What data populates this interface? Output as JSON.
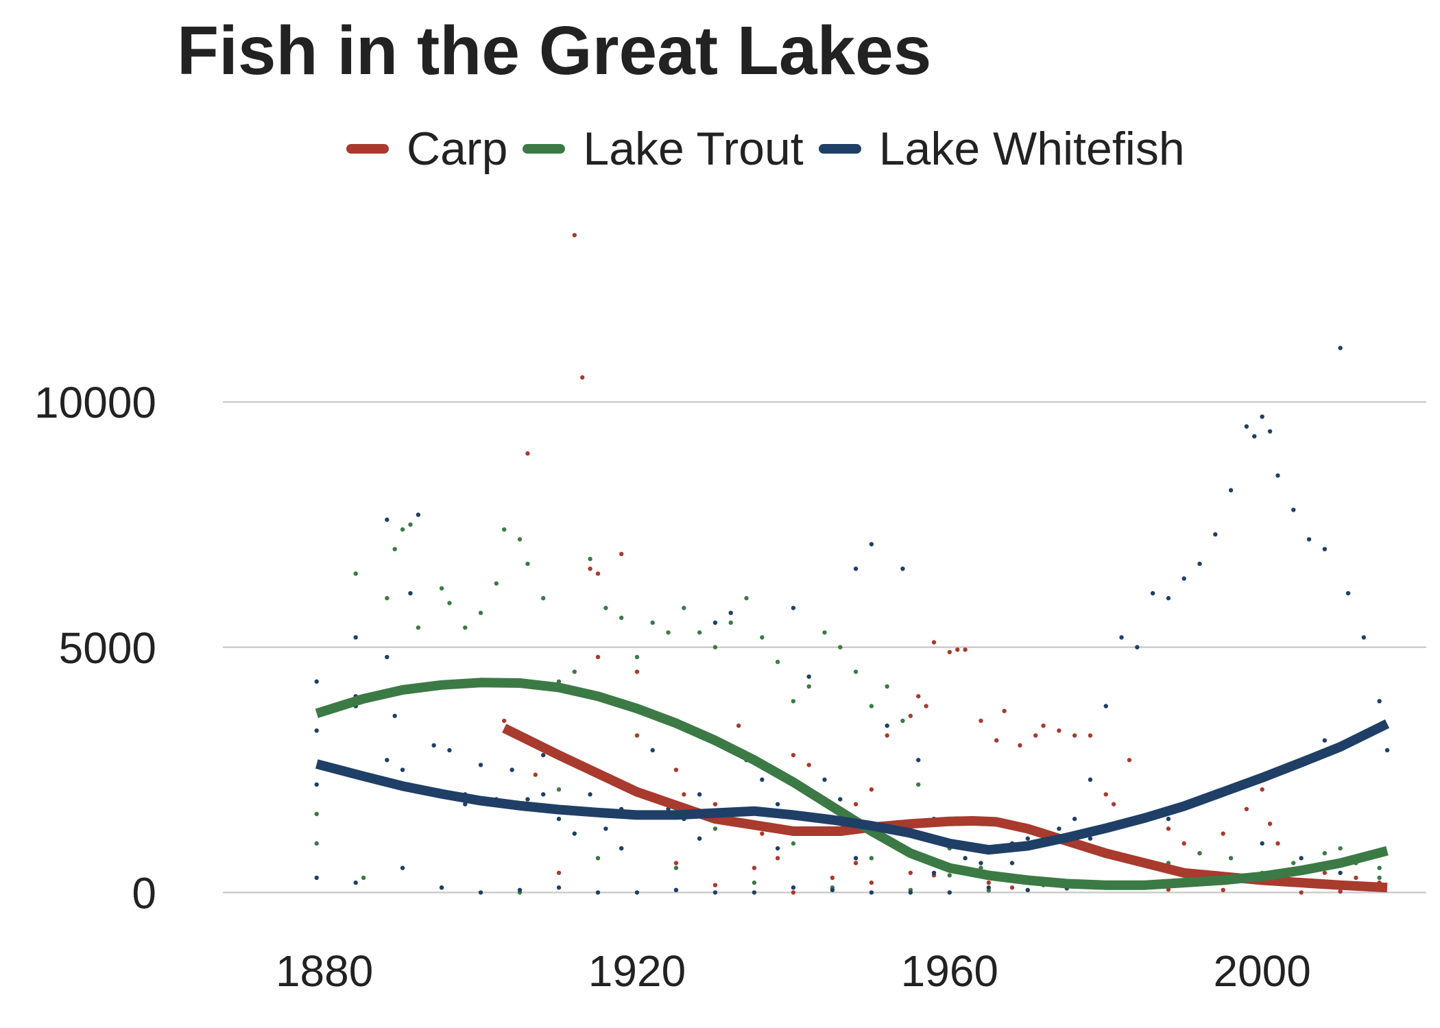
{
  "chart_data": {
    "type": "scatter",
    "title": "Fish in the Great Lakes",
    "xlabel": "",
    "ylabel": "",
    "xlim": [
      1867,
      2021
    ],
    "ylim": [
      -400,
      14000
    ],
    "x_ticks": [
      1880,
      1920,
      1960,
      2000
    ],
    "y_ticks": [
      0,
      5000,
      10000
    ],
    "grid": "horizontal",
    "legend_position": "top",
    "series": [
      {
        "name": "Carp",
        "color": "#a93a2e",
        "points": [
          [
            1903,
            3500
          ],
          [
            1906,
            8950
          ],
          [
            1907,
            2400
          ],
          [
            1912,
            13400
          ],
          [
            1913,
            10500
          ],
          [
            1914,
            6600
          ],
          [
            1915,
            6500
          ],
          [
            1918,
            6900
          ],
          [
            1915,
            4800
          ],
          [
            1920,
            4500
          ],
          [
            1920,
            3200
          ],
          [
            1925,
            2500
          ],
          [
            1926,
            2000
          ],
          [
            1930,
            1800
          ],
          [
            1933,
            3400
          ],
          [
            1936,
            1200
          ],
          [
            1940,
            2800
          ],
          [
            1942,
            2600
          ],
          [
            1944,
            1200
          ],
          [
            1948,
            1800
          ],
          [
            1950,
            2100
          ],
          [
            1952,
            3200
          ],
          [
            1955,
            3600
          ],
          [
            1956,
            4000
          ],
          [
            1957,
            3800
          ],
          [
            1958,
            5100
          ],
          [
            1960,
            4900
          ],
          [
            1961,
            4950
          ],
          [
            1962,
            4950
          ],
          [
            1964,
            3500
          ],
          [
            1966,
            3100
          ],
          [
            1967,
            3700
          ],
          [
            1969,
            3000
          ],
          [
            1971,
            3200
          ],
          [
            1972,
            3400
          ],
          [
            1974,
            3300
          ],
          [
            1976,
            3200
          ],
          [
            1978,
            3200
          ],
          [
            1980,
            2000
          ],
          [
            1981,
            1800
          ],
          [
            1983,
            2700
          ],
          [
            1985,
            1500
          ],
          [
            1988,
            1300
          ],
          [
            1990,
            1000
          ],
          [
            1992,
            800
          ],
          [
            1995,
            1200
          ],
          [
            1998,
            1700
          ],
          [
            2000,
            2100
          ],
          [
            2001,
            1400
          ],
          [
            2002,
            1000
          ],
          [
            2005,
            500
          ],
          [
            2008,
            400
          ],
          [
            2012,
            300
          ],
          [
            2015,
            200
          ],
          [
            1910,
            400
          ],
          [
            1925,
            600
          ],
          [
            1935,
            500
          ],
          [
            1945,
            300
          ],
          [
            1955,
            400
          ],
          [
            1965,
            200
          ],
          [
            1975,
            150
          ],
          [
            1985,
            100
          ],
          [
            1995,
            50
          ],
          [
            2005,
            0
          ],
          [
            1930,
            150
          ],
          [
            1940,
            0
          ],
          [
            1950,
            200
          ],
          [
            1918,
            900
          ],
          [
            1928,
            1100
          ],
          [
            1938,
            700
          ],
          [
            1948,
            600
          ],
          [
            1958,
            350
          ],
          [
            1968,
            100
          ],
          [
            1988,
            60
          ],
          [
            2010,
            20
          ]
        ]
      },
      {
        "name": "Lake Trout",
        "color": "#3c7a45",
        "points": [
          [
            1879,
            1000
          ],
          [
            1879,
            1600
          ],
          [
            1884,
            6500
          ],
          [
            1888,
            6000
          ],
          [
            1889,
            7000
          ],
          [
            1890,
            7400
          ],
          [
            1891,
            7500
          ],
          [
            1892,
            5400
          ],
          [
            1895,
            6200
          ],
          [
            1896,
            5900
          ],
          [
            1898,
            5400
          ],
          [
            1900,
            5700
          ],
          [
            1902,
            6300
          ],
          [
            1903,
            7400
          ],
          [
            1905,
            7200
          ],
          [
            1906,
            6700
          ],
          [
            1908,
            6000
          ],
          [
            1910,
            4300
          ],
          [
            1912,
            4500
          ],
          [
            1914,
            6800
          ],
          [
            1916,
            5800
          ],
          [
            1918,
            5600
          ],
          [
            1920,
            4800
          ],
          [
            1922,
            5500
          ],
          [
            1924,
            5300
          ],
          [
            1926,
            5800
          ],
          [
            1928,
            5300
          ],
          [
            1930,
            5000
          ],
          [
            1932,
            5500
          ],
          [
            1934,
            6000
          ],
          [
            1936,
            5200
          ],
          [
            1938,
            4700
          ],
          [
            1940,
            3900
          ],
          [
            1942,
            4200
          ],
          [
            1944,
            5300
          ],
          [
            1946,
            5000
          ],
          [
            1948,
            4500
          ],
          [
            1950,
            3800
          ],
          [
            1952,
            4200
          ],
          [
            1954,
            3500
          ],
          [
            1956,
            2200
          ],
          [
            1958,
            1400
          ],
          [
            1960,
            900
          ],
          [
            1964,
            500
          ],
          [
            1968,
            300
          ],
          [
            1972,
            150
          ],
          [
            1976,
            120
          ],
          [
            1980,
            100
          ],
          [
            1984,
            200
          ],
          [
            1988,
            600
          ],
          [
            1992,
            800
          ],
          [
            1996,
            700
          ],
          [
            2000,
            400
          ],
          [
            2004,
            600
          ],
          [
            2008,
            800
          ],
          [
            2012,
            600
          ],
          [
            2015,
            500
          ],
          [
            1885,
            300
          ],
          [
            1895,
            100
          ],
          [
            1905,
            0
          ],
          [
            1915,
            700
          ],
          [
            1925,
            500
          ],
          [
            1935,
            200
          ],
          [
            1945,
            100
          ],
          [
            1955,
            50
          ],
          [
            1965,
            40
          ],
          [
            1975,
            80
          ],
          [
            1985,
            150
          ],
          [
            1995,
            350
          ],
          [
            2005,
            200
          ],
          [
            2015,
            300
          ],
          [
            1910,
            2100
          ],
          [
            1920,
            1600
          ],
          [
            1930,
            1300
          ],
          [
            1940,
            1000
          ],
          [
            1950,
            700
          ],
          [
            1960,
            350
          ],
          [
            1970,
            250
          ],
          [
            1990,
            400
          ],
          [
            2010,
            900
          ]
        ]
      },
      {
        "name": "Lake Whitefish",
        "color": "#1f3f67",
        "points": [
          [
            1879,
            4300
          ],
          [
            1879,
            3300
          ],
          [
            1879,
            2200
          ],
          [
            1879,
            300
          ],
          [
            1884,
            5200
          ],
          [
            1884,
            4000
          ],
          [
            1884,
            3800
          ],
          [
            1888,
            7600
          ],
          [
            1888,
            4800
          ],
          [
            1889,
            3600
          ],
          [
            1890,
            2500
          ],
          [
            1891,
            6100
          ],
          [
            1892,
            7700
          ],
          [
            1894,
            3000
          ],
          [
            1896,
            2900
          ],
          [
            1898,
            2000
          ],
          [
            1900,
            2600
          ],
          [
            1902,
            1900
          ],
          [
            1904,
            2500
          ],
          [
            1906,
            1900
          ],
          [
            1908,
            2800
          ],
          [
            1910,
            1500
          ],
          [
            1912,
            1200
          ],
          [
            1914,
            2000
          ],
          [
            1916,
            1300
          ],
          [
            1918,
            1700
          ],
          [
            1920,
            2100
          ],
          [
            1922,
            2900
          ],
          [
            1924,
            1700
          ],
          [
            1926,
            1500
          ],
          [
            1928,
            2000
          ],
          [
            1930,
            5500
          ],
          [
            1932,
            5700
          ],
          [
            1934,
            2700
          ],
          [
            1936,
            2300
          ],
          [
            1938,
            1800
          ],
          [
            1940,
            5800
          ],
          [
            1942,
            4400
          ],
          [
            1944,
            2300
          ],
          [
            1946,
            1900
          ],
          [
            1948,
            6600
          ],
          [
            1950,
            7100
          ],
          [
            1952,
            3400
          ],
          [
            1954,
            6600
          ],
          [
            1956,
            2700
          ],
          [
            1958,
            1500
          ],
          [
            1960,
            1000
          ],
          [
            1962,
            700
          ],
          [
            1964,
            600
          ],
          [
            1966,
            900
          ],
          [
            1968,
            1000
          ],
          [
            1970,
            1100
          ],
          [
            1972,
            1200
          ],
          [
            1974,
            1300
          ],
          [
            1976,
            1500
          ],
          [
            1978,
            2300
          ],
          [
            1980,
            3800
          ],
          [
            1982,
            5200
          ],
          [
            1984,
            5000
          ],
          [
            1986,
            6100
          ],
          [
            1988,
            6000
          ],
          [
            1990,
            6400
          ],
          [
            1992,
            6700
          ],
          [
            1994,
            7300
          ],
          [
            1996,
            8200
          ],
          [
            1998,
            9500
          ],
          [
            1999,
            9300
          ],
          [
            2000,
            9700
          ],
          [
            2001,
            9400
          ],
          [
            2002,
            8500
          ],
          [
            2004,
            7800
          ],
          [
            2006,
            7200
          ],
          [
            2008,
            7000
          ],
          [
            2010,
            11100
          ],
          [
            2011,
            6100
          ],
          [
            2013,
            5200
          ],
          [
            2015,
            3900
          ],
          [
            2016,
            2900
          ],
          [
            1884,
            200
          ],
          [
            1890,
            500
          ],
          [
            1895,
            100
          ],
          [
            1900,
            0
          ],
          [
            1905,
            50
          ],
          [
            1910,
            100
          ],
          [
            1915,
            0
          ],
          [
            1920,
            0
          ],
          [
            1925,
            50
          ],
          [
            1930,
            0
          ],
          [
            1935,
            0
          ],
          [
            1940,
            100
          ],
          [
            1945,
            50
          ],
          [
            1950,
            0
          ],
          [
            1955,
            0
          ],
          [
            1960,
            0
          ],
          [
            1965,
            100
          ],
          [
            1970,
            50
          ],
          [
            1975,
            100
          ],
          [
            1985,
            150
          ],
          [
            1990,
            200
          ],
          [
            1995,
            300
          ],
          [
            2000,
            1000
          ],
          [
            2005,
            700
          ],
          [
            2010,
            400
          ],
          [
            1888,
            2700
          ],
          [
            1898,
            1800
          ],
          [
            1908,
            2000
          ],
          [
            1918,
            900
          ],
          [
            1928,
            1100
          ],
          [
            1938,
            900
          ],
          [
            1948,
            700
          ],
          [
            1958,
            400
          ],
          [
            1968,
            600
          ],
          [
            1978,
            1100
          ],
          [
            1988,
            1500
          ],
          [
            1998,
            2200
          ],
          [
            2008,
            3100
          ]
        ]
      }
    ],
    "trend_lines": [
      {
        "name": "Carp",
        "color": "#a93a2e",
        "x": [
          1903,
          1910,
          1920,
          1930,
          1940,
          1946,
          1950,
          1955,
          1960,
          1963,
          1966,
          1970,
          1975,
          1980,
          1990,
          2000,
          2010,
          2016
        ],
        "y": [
          3350,
          2800,
          2050,
          1500,
          1250,
          1250,
          1330,
          1400,
          1450,
          1460,
          1440,
          1300,
          1050,
          800,
          400,
          250,
          150,
          100
        ]
      },
      {
        "name": "Lake Trout",
        "color": "#3c7a45",
        "x": [
          1879,
          1885,
          1890,
          1895,
          1900,
          1905,
          1910,
          1915,
          1920,
          1925,
          1930,
          1935,
          1940,
          1945,
          1950,
          1955,
          1960,
          1965,
          1970,
          1975,
          1980,
          1985,
          1990,
          1995,
          2000,
          2005,
          2010,
          2016
        ],
        "y": [
          3650,
          3950,
          4130,
          4230,
          4280,
          4270,
          4180,
          4000,
          3750,
          3450,
          3100,
          2700,
          2250,
          1750,
          1250,
          800,
          500,
          350,
          250,
          180,
          150,
          150,
          200,
          250,
          330,
          450,
          600,
          850
        ]
      },
      {
        "name": "Lake Whitefish",
        "color": "#1f3f67",
        "x": [
          1879,
          1885,
          1890,
          1895,
          1900,
          1905,
          1910,
          1915,
          1920,
          1925,
          1930,
          1935,
          1940,
          1945,
          1950,
          1955,
          1960,
          1965,
          1970,
          1975,
          1980,
          1985,
          1990,
          1995,
          2000,
          2005,
          2010,
          2016
        ],
        "y": [
          2620,
          2370,
          2170,
          2010,
          1870,
          1770,
          1690,
          1630,
          1580,
          1580,
          1620,
          1660,
          1580,
          1480,
          1360,
          1210,
          1000,
          870,
          950,
          1120,
          1310,
          1520,
          1760,
          2050,
          2340,
          2650,
          2970,
          3440
        ]
      }
    ]
  }
}
